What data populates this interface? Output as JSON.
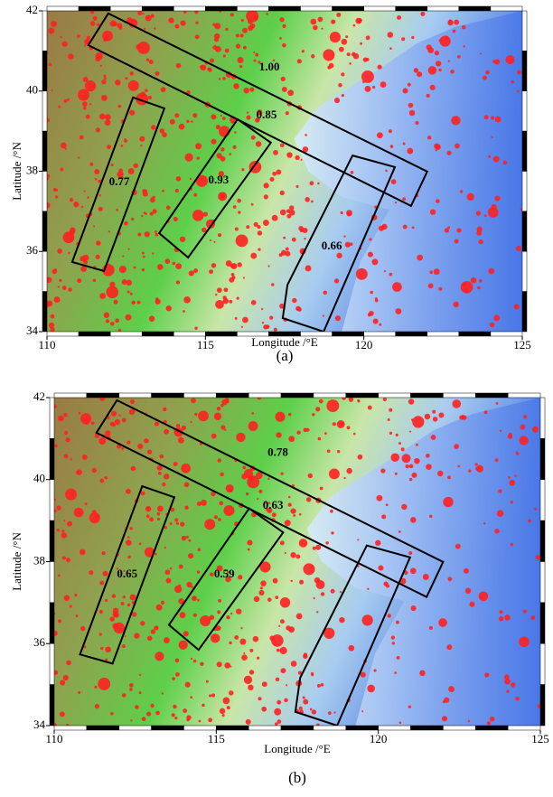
{
  "panels": [
    {
      "label": "(a)",
      "xlabel": "Longitude /°E",
      "ylabel": "Latitude /°N",
      "xlim": [
        110,
        125
      ],
      "ylim": [
        34,
        42
      ],
      "xticks": [
        110,
        115,
        120,
        125
      ],
      "yticks": [
        34,
        36,
        38,
        40,
        42
      ],
      "box_labels": [
        "1.00",
        "0.85",
        "0.77",
        "0.93",
        "0.66"
      ]
    },
    {
      "label": "(b)",
      "xlabel": "Longitude /°E",
      "ylabel": "Latitude /°N",
      "xlim": [
        110,
        125
      ],
      "ylim": [
        34,
        42
      ],
      "xticks": [
        110,
        115,
        120,
        125
      ],
      "yticks": [
        34,
        36,
        38,
        40,
        42
      ],
      "box_labels": [
        "0.78",
        "0.63",
        "0.65",
        "0.59"
      ]
    }
  ]
}
